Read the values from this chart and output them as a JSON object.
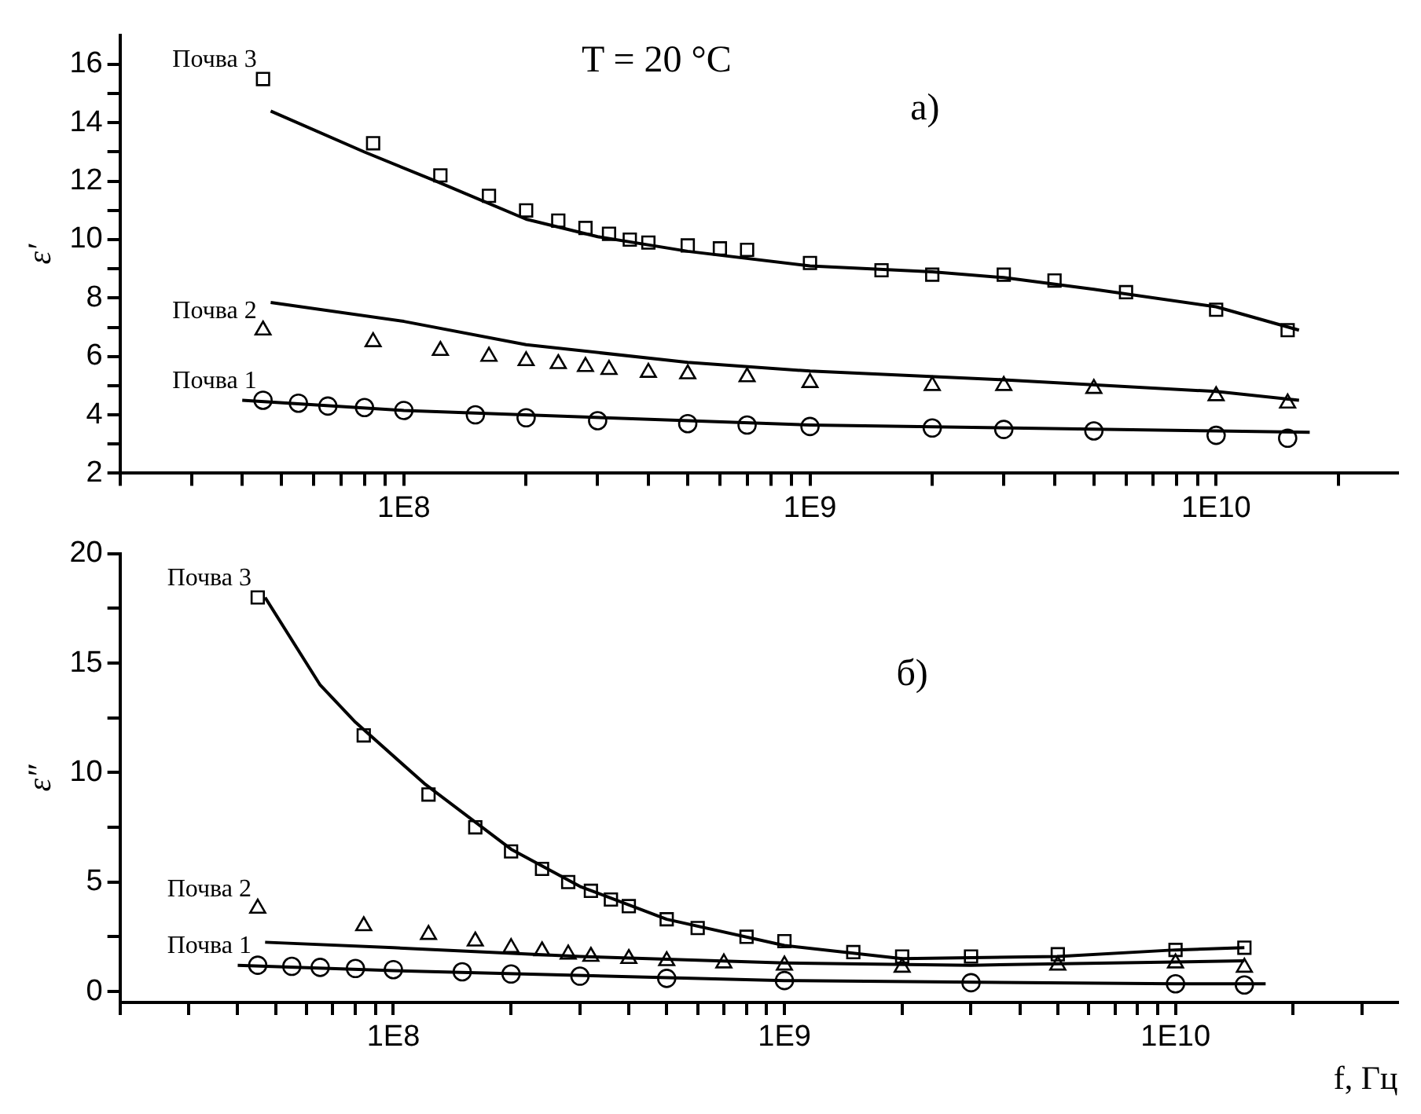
{
  "chart_data": [
    {
      "type": "scatter",
      "ylabel": "ε′",
      "annotations": [
        "T = 20 °C",
        "а)"
      ],
      "log": "x",
      "grid": false,
      "xlim": [
        20000000.0,
        28000000000.0
      ],
      "ylim": [
        2,
        17
      ],
      "xticks": [
        {
          "value": 20000000.0,
          "label": null
        },
        {
          "value": 30000000.0,
          "label": null
        },
        {
          "value": 40000000.0,
          "label": null
        },
        {
          "value": 50000000.0,
          "label": null
        },
        {
          "value": 60000000.0,
          "label": null
        },
        {
          "value": 70000000.0,
          "label": null
        },
        {
          "value": 80000000.0,
          "label": null
        },
        {
          "value": 90000000.0,
          "label": null
        },
        {
          "value": 100000000.0,
          "label": "1E8"
        },
        {
          "value": 200000000.0,
          "label": null
        },
        {
          "value": 300000000.0,
          "label": null
        },
        {
          "value": 400000000.0,
          "label": null
        },
        {
          "value": 500000000.0,
          "label": null
        },
        {
          "value": 600000000.0,
          "label": null
        },
        {
          "value": 700000000.0,
          "label": null
        },
        {
          "value": 800000000.0,
          "label": null
        },
        {
          "value": 900000000.0,
          "label": null
        },
        {
          "value": 1000000000.0,
          "label": "1E9"
        },
        {
          "value": 2000000000.0,
          "label": null
        },
        {
          "value": 3000000000.0,
          "label": null
        },
        {
          "value": 4000000000.0,
          "label": null
        },
        {
          "value": 5000000000.0,
          "label": null
        },
        {
          "value": 6000000000.0,
          "label": null
        },
        {
          "value": 7000000000.0,
          "label": null
        },
        {
          "value": 8000000000.0,
          "label": null
        },
        {
          "value": 9000000000.0,
          "label": null
        },
        {
          "value": 10000000000.0,
          "label": "1E10"
        },
        {
          "value": 20000000000.0,
          "label": null
        }
      ],
      "yticks": [
        2,
        {
          "value": 3,
          "label": null
        },
        4,
        {
          "value": 5,
          "label": null
        },
        6,
        {
          "value": 7,
          "label": null
        },
        8,
        {
          "value": 9,
          "label": null
        },
        10,
        {
          "value": 11,
          "label": null
        },
        12,
        {
          "value": 13,
          "label": null
        },
        14,
        {
          "value": 15,
          "label": null
        },
        16
      ],
      "series": [
        {
          "name": "Почва 3",
          "marker": "square",
          "color": "#000000",
          "x": [
            45000000.0,
            84000000.0,
            123000000.0,
            162000000.0,
            200000000.0,
            240000000.0,
            280000000.0,
            320000000.0,
            360000000.0,
            400000000.0,
            500000000.0,
            600000000.0,
            700000000.0,
            1000000000.0,
            1500000000.0,
            2000000000.0,
            3000000000.0,
            4000000000.0,
            6000000000.0,
            10000000000.0,
            15000000000.0
          ],
          "values": [
            15.5,
            13.3,
            12.2,
            11.5,
            11.0,
            10.65,
            10.4,
            10.2,
            10.0,
            9.9,
            9.8,
            9.7,
            9.65,
            9.2,
            8.95,
            8.8,
            8.8,
            8.6,
            8.2,
            7.6,
            6.9
          ]
        },
        {
          "type": "line",
          "marker": "none",
          "color": "#000000",
          "x": [
            47000000.0,
            80000000.0,
            120000000.0,
            200000000.0,
            300000000.0,
            500000000.0,
            1000000000.0,
            2000000000.0,
            3000000000.0,
            5000000000.0,
            10000000000.0,
            16000000000.0
          ],
          "values": [
            14.4,
            13.0,
            12.0,
            10.7,
            10.1,
            9.6,
            9.1,
            8.9,
            8.7,
            8.3,
            7.7,
            6.9
          ]
        },
        {
          "name": "Почва 2",
          "marker": "triangle",
          "color": "#000000",
          "x": [
            45000000.0,
            84000000.0,
            123000000.0,
            162000000.0,
            200000000.0,
            240000000.0,
            280000000.0,
            320000000.0,
            400000000.0,
            500000000.0,
            700000000.0,
            1000000000.0,
            2000000000.0,
            3000000000.0,
            5000000000.0,
            10000000000.0,
            15000000000.0
          ],
          "values": [
            6.9,
            6.5,
            6.2,
            6.0,
            5.85,
            5.75,
            5.65,
            5.55,
            5.45,
            5.4,
            5.3,
            5.1,
            5.0,
            5.0,
            4.9,
            4.65,
            4.4
          ]
        },
        {
          "type": "line",
          "marker": "none",
          "color": "#000000",
          "x": [
            47000000.0,
            100000000.0,
            200000000.0,
            500000000.0,
            1000000000.0,
            3000000000.0,
            10000000000.0,
            16000000000.0
          ],
          "values": [
            7.85,
            7.2,
            6.4,
            5.8,
            5.5,
            5.2,
            4.8,
            4.5
          ]
        },
        {
          "name": "Почва 1",
          "marker": "circle",
          "color": "#000000",
          "x": [
            45000000.0,
            55000000.0,
            65000000.0,
            80000000.0,
            100000000.0,
            150000000.0,
            200000000.0,
            300000000.0,
            500000000.0,
            700000000.0,
            1000000000.0,
            2000000000.0,
            3000000000.0,
            5000000000.0,
            10000000000.0,
            15000000000.0
          ],
          "values": [
            4.5,
            4.4,
            4.3,
            4.25,
            4.15,
            4.0,
            3.9,
            3.8,
            3.7,
            3.65,
            3.6,
            3.55,
            3.5,
            3.45,
            3.3,
            3.2
          ]
        },
        {
          "type": "line",
          "marker": "none",
          "color": "#000000",
          "x": [
            40000000.0,
            100000000.0,
            1000000000.0,
            10000000000.0,
            17000000000.0
          ],
          "values": [
            4.5,
            4.15,
            3.65,
            3.45,
            3.4
          ]
        }
      ]
    },
    {
      "type": "scatter",
      "ylabel": "ε″",
      "xlabel": "f, Гц",
      "annotations": [
        "б)"
      ],
      "log": "x",
      "grid": false,
      "xlim": [
        20000000.0,
        37000000000.0
      ],
      "ylim": [
        -0.5,
        20
      ],
      "xticks": [
        {
          "value": 20000000.0,
          "label": null
        },
        {
          "value": 30000000.0,
          "label": null
        },
        {
          "value": 40000000.0,
          "label": null
        },
        {
          "value": 50000000.0,
          "label": null
        },
        {
          "value": 60000000.0,
          "label": null
        },
        {
          "value": 70000000.0,
          "label": null
        },
        {
          "value": 80000000.0,
          "label": null
        },
        {
          "value": 90000000.0,
          "label": null
        },
        {
          "value": 100000000.0,
          "label": "1E8"
        },
        {
          "value": 200000000.0,
          "label": null
        },
        {
          "value": 300000000.0,
          "label": null
        },
        {
          "value": 400000000.0,
          "label": null
        },
        {
          "value": 500000000.0,
          "label": null
        },
        {
          "value": 600000000.0,
          "label": null
        },
        {
          "value": 700000000.0,
          "label": null
        },
        {
          "value": 800000000.0,
          "label": null
        },
        {
          "value": 900000000.0,
          "label": null
        },
        {
          "value": 1000000000.0,
          "label": "1E9"
        },
        {
          "value": 2000000000.0,
          "label": null
        },
        {
          "value": 3000000000.0,
          "label": null
        },
        {
          "value": 4000000000.0,
          "label": null
        },
        {
          "value": 5000000000.0,
          "label": null
        },
        {
          "value": 6000000000.0,
          "label": null
        },
        {
          "value": 7000000000.0,
          "label": null
        },
        {
          "value": 8000000000.0,
          "label": null
        },
        {
          "value": 9000000000.0,
          "label": null
        },
        {
          "value": 10000000000.0,
          "label": "1E10"
        },
        {
          "value": 20000000000.0,
          "label": null
        },
        {
          "value": 30000000000.0,
          "label": null
        }
      ],
      "yticks": [
        0,
        {
          "value": 2.5,
          "label": null
        },
        5,
        {
          "value": 7.5,
          "label": null
        },
        10,
        {
          "value": 12.5,
          "label": null
        },
        15,
        {
          "value": 17.5,
          "label": null
        },
        20
      ],
      "series": [
        {
          "name": "Почва 3",
          "marker": "square",
          "color": "#000000",
          "x": [
            45000000.0,
            84000000.0,
            123000000.0,
            162000000.0,
            200000000.0,
            240000000.0,
            280000000.0,
            320000000.0,
            360000000.0,
            400000000.0,
            500000000.0,
            600000000.0,
            800000000.0,
            1000000000.0,
            1500000000.0,
            2000000000.0,
            3000000000.0,
            5000000000.0,
            10000000000.0,
            15000000000.0
          ],
          "values": [
            18.0,
            11.7,
            9.0,
            7.5,
            6.4,
            5.6,
            5.0,
            4.6,
            4.2,
            3.9,
            3.3,
            2.9,
            2.5,
            2.3,
            1.8,
            1.6,
            1.6,
            1.7,
            1.9,
            2.0
          ]
        },
        {
          "type": "line",
          "marker": "none",
          "color": "#000000",
          "x": [
            47000000.0,
            65000000.0,
            80000000.0,
            120000000.0,
            200000000.0,
            300000000.0,
            500000000.0,
            1000000000.0,
            2000000000.0,
            5000000000.0,
            10000000000.0,
            15000000000.0
          ],
          "values": [
            18,
            14,
            12.3,
            9.5,
            6.5,
            4.8,
            3.3,
            2.1,
            1.5,
            1.6,
            1.9,
            2.0
          ]
        },
        {
          "name": "Почва 2",
          "marker": "triangle",
          "color": "#000000",
          "x": [
            45000000.0,
            84000000.0,
            123000000.0,
            162000000.0,
            200000000.0,
            240000000.0,
            280000000.0,
            320000000.0,
            400000000.0,
            500000000.0,
            700000000.0,
            1000000000.0,
            2000000000.0,
            5000000000.0,
            10000000000.0,
            15000000000.0
          ],
          "values": [
            3.8,
            3.0,
            2.6,
            2.3,
            2.0,
            1.85,
            1.7,
            1.6,
            1.5,
            1.4,
            1.3,
            1.2,
            1.1,
            1.2,
            1.3,
            1.1
          ]
        },
        {
          "type": "line",
          "marker": "none",
          "color": "#000000",
          "x": [
            47000000.0,
            100000000.0,
            300000000.0,
            1000000000.0,
            3000000000.0,
            10000000000.0,
            15000000000.0
          ],
          "values": [
            2.25,
            2.0,
            1.6,
            1.3,
            1.2,
            1.35,
            1.4
          ]
        },
        {
          "name": "Почва 1",
          "marker": "circle",
          "color": "#000000",
          "x": [
            45000000.0,
            55000000.0,
            65000000.0,
            80000000.0,
            100000000.0,
            150000000.0,
            200000000.0,
            300000000.0,
            500000000.0,
            1000000000.0,
            3000000000.0,
            10000000000.0,
            15000000000.0
          ],
          "values": [
            1.2,
            1.15,
            1.1,
            1.05,
            1.0,
            0.9,
            0.8,
            0.7,
            0.6,
            0.5,
            0.4,
            0.35,
            0.3
          ]
        },
        {
          "type": "line",
          "marker": "none",
          "color": "#000000",
          "x": [
            40000000.0,
            100000000.0,
            1000000000.0,
            10000000000.0,
            17000000000.0
          ],
          "values": [
            1.2,
            0.95,
            0.5,
            0.35,
            0.35
          ]
        }
      ]
    }
  ]
}
